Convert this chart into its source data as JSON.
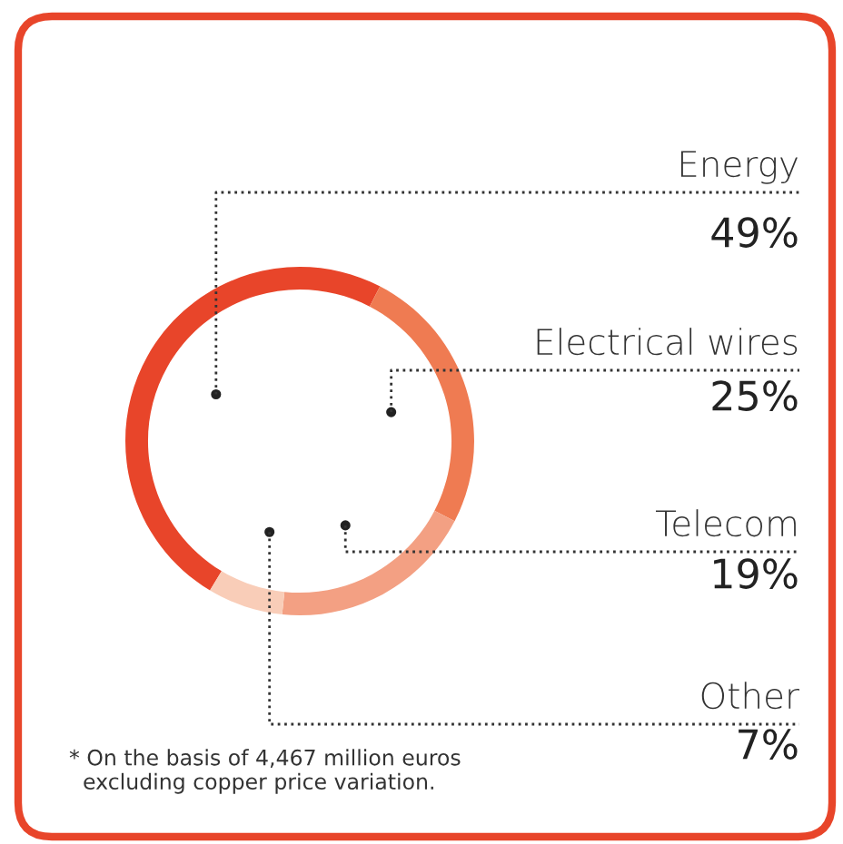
{
  "chart_data": {
    "type": "donut",
    "categories": [
      "Energy",
      "Electrical wires",
      "Telecom",
      "Other"
    ],
    "values": [
      49,
      25,
      19,
      7
    ],
    "value_labels": [
      "49%",
      "25%",
      "19%",
      "7%"
    ],
    "colors": [
      "#e8452a",
      "#ef7b52",
      "#f3a083",
      "#f9cdb8"
    ],
    "annotations": [
      "* On the basis of 4,467 million euros\n  excluding copper price variation."
    ]
  }
}
